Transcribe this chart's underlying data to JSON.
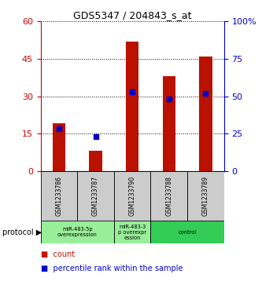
{
  "title": "GDS5347 / 204843_s_at",
  "samples": [
    "GSM1233786",
    "GSM1233787",
    "GSM1233790",
    "GSM1233788",
    "GSM1233789"
  ],
  "count_values": [
    19,
    8,
    52,
    38,
    46
  ],
  "percentile_values": [
    28,
    23,
    53,
    48,
    52
  ],
  "left_yticks": [
    0,
    15,
    30,
    45,
    60
  ],
  "right_ytick_labels": [
    "0",
    "25",
    "50",
    "75",
    "100%"
  ],
  "left_ylabel_color": "#cc0000",
  "right_ylabel_color": "#0000cc",
  "bar_color": "#bb1100",
  "dot_color": "#0000cc",
  "grid_color": "#000000",
  "bg_color": "#ffffff",
  "plot_bg": "#ffffff",
  "sample_bg_color": "#cccccc",
  "legend_count_color": "#cc1100",
  "legend_pct_color": "#0000cc",
  "ylim_left": [
    0,
    60
  ],
  "ylim_right": [
    0,
    100
  ],
  "proto_configs": [
    {
      "start": 0,
      "end": 1,
      "label": "miR-483-5p\noverexpression",
      "color": "#99ee99"
    },
    {
      "start": 2,
      "end": 2,
      "label": "miR-483-3\np overexpr\nession",
      "color": "#99ee99"
    },
    {
      "start": 3,
      "end": 4,
      "label": "control",
      "color": "#33cc55"
    }
  ]
}
